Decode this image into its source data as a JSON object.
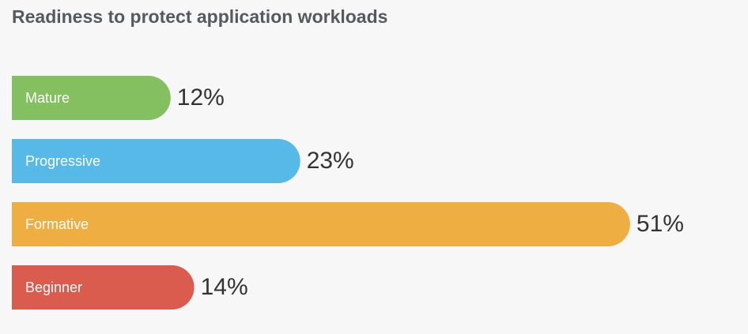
{
  "chart_data": {
    "type": "bar",
    "orientation": "horizontal",
    "title": "Readiness to protect application workloads",
    "categories": [
      "Mature",
      "Progressive",
      "Formative",
      "Beginner"
    ],
    "values": [
      12,
      23,
      51,
      14
    ],
    "value_labels": [
      "12%",
      "23%",
      "51%",
      "14%"
    ],
    "colors": [
      "#84c05f",
      "#56b9e8",
      "#eeae42",
      "#d95c4f"
    ]
  }
}
